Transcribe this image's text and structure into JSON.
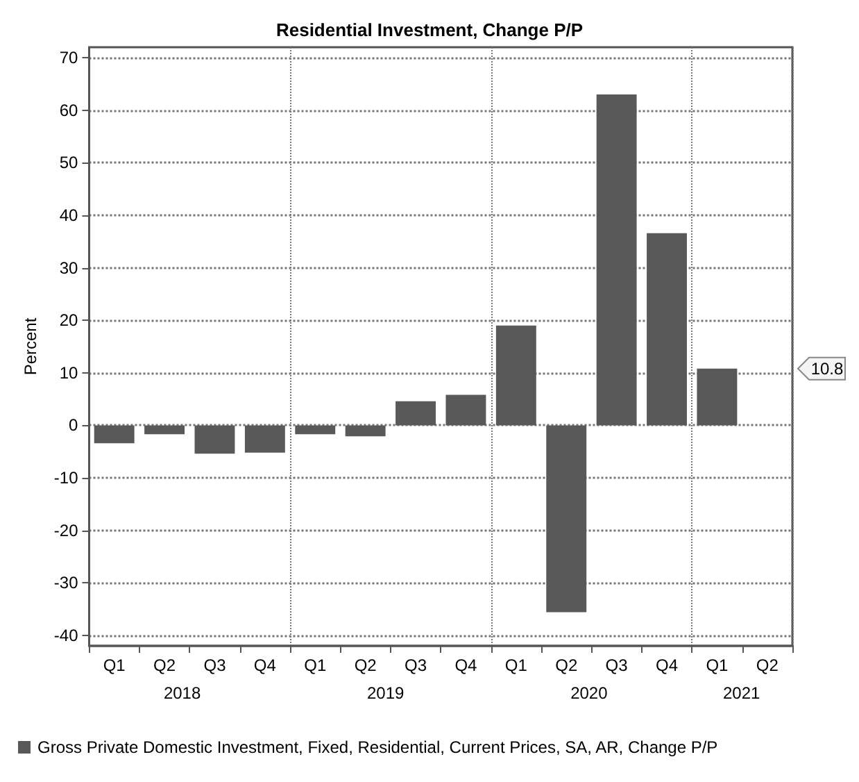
{
  "chart_data": {
    "type": "bar",
    "title": "Residential Investment, Change P/P",
    "ylabel": "Percent",
    "categories": [
      "Q1",
      "Q2",
      "Q3",
      "Q4",
      "Q1",
      "Q2",
      "Q3",
      "Q4",
      "Q1",
      "Q2",
      "Q3",
      "Q4",
      "Q1",
      "Q2"
    ],
    "series": [
      {
        "name": "Gross Private Domestic Investment, Fixed, Residential, Current Prices, SA, AR, Change P/P",
        "color": "#595959",
        "values": [
          -3.4,
          -1.7,
          -5.4,
          -5.2,
          -1.7,
          -2.1,
          4.6,
          5.8,
          19.0,
          -35.6,
          63.0,
          36.6,
          10.8,
          null
        ]
      }
    ],
    "ylim": [
      -42,
      72
    ],
    "yticks": [
      -40,
      -30,
      -20,
      -10,
      0,
      10,
      20,
      30,
      40,
      50,
      60,
      70
    ],
    "annotations": [
      "2018",
      "2019",
      "2020",
      "2021",
      "10.8"
    ],
    "grid": true,
    "legend": "bottom"
  }
}
